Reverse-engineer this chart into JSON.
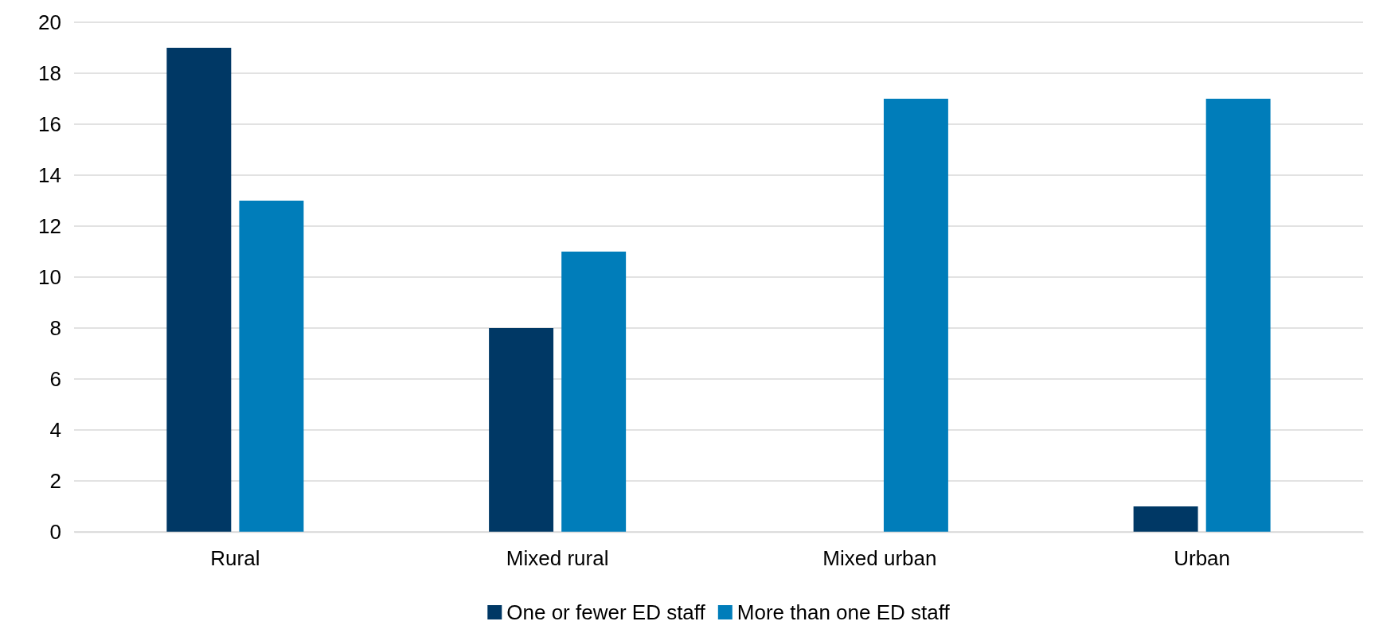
{
  "chart_data": {
    "type": "bar",
    "categories": [
      "Rural",
      "Mixed rural",
      "Mixed urban",
      "Urban"
    ],
    "series": [
      {
        "name": "One or fewer ED staff",
        "color": "#003865",
        "values": [
          19,
          8,
          0,
          1
        ]
      },
      {
        "name": "More than one ED staff",
        "color": "#007dba",
        "values": [
          13,
          11,
          17,
          17
        ]
      }
    ],
    "ylim": [
      0,
      20
    ],
    "yticks": [
      0,
      2,
      4,
      6,
      8,
      10,
      12,
      14,
      16,
      18,
      20
    ],
    "grid": "y",
    "legend": "bottom"
  }
}
